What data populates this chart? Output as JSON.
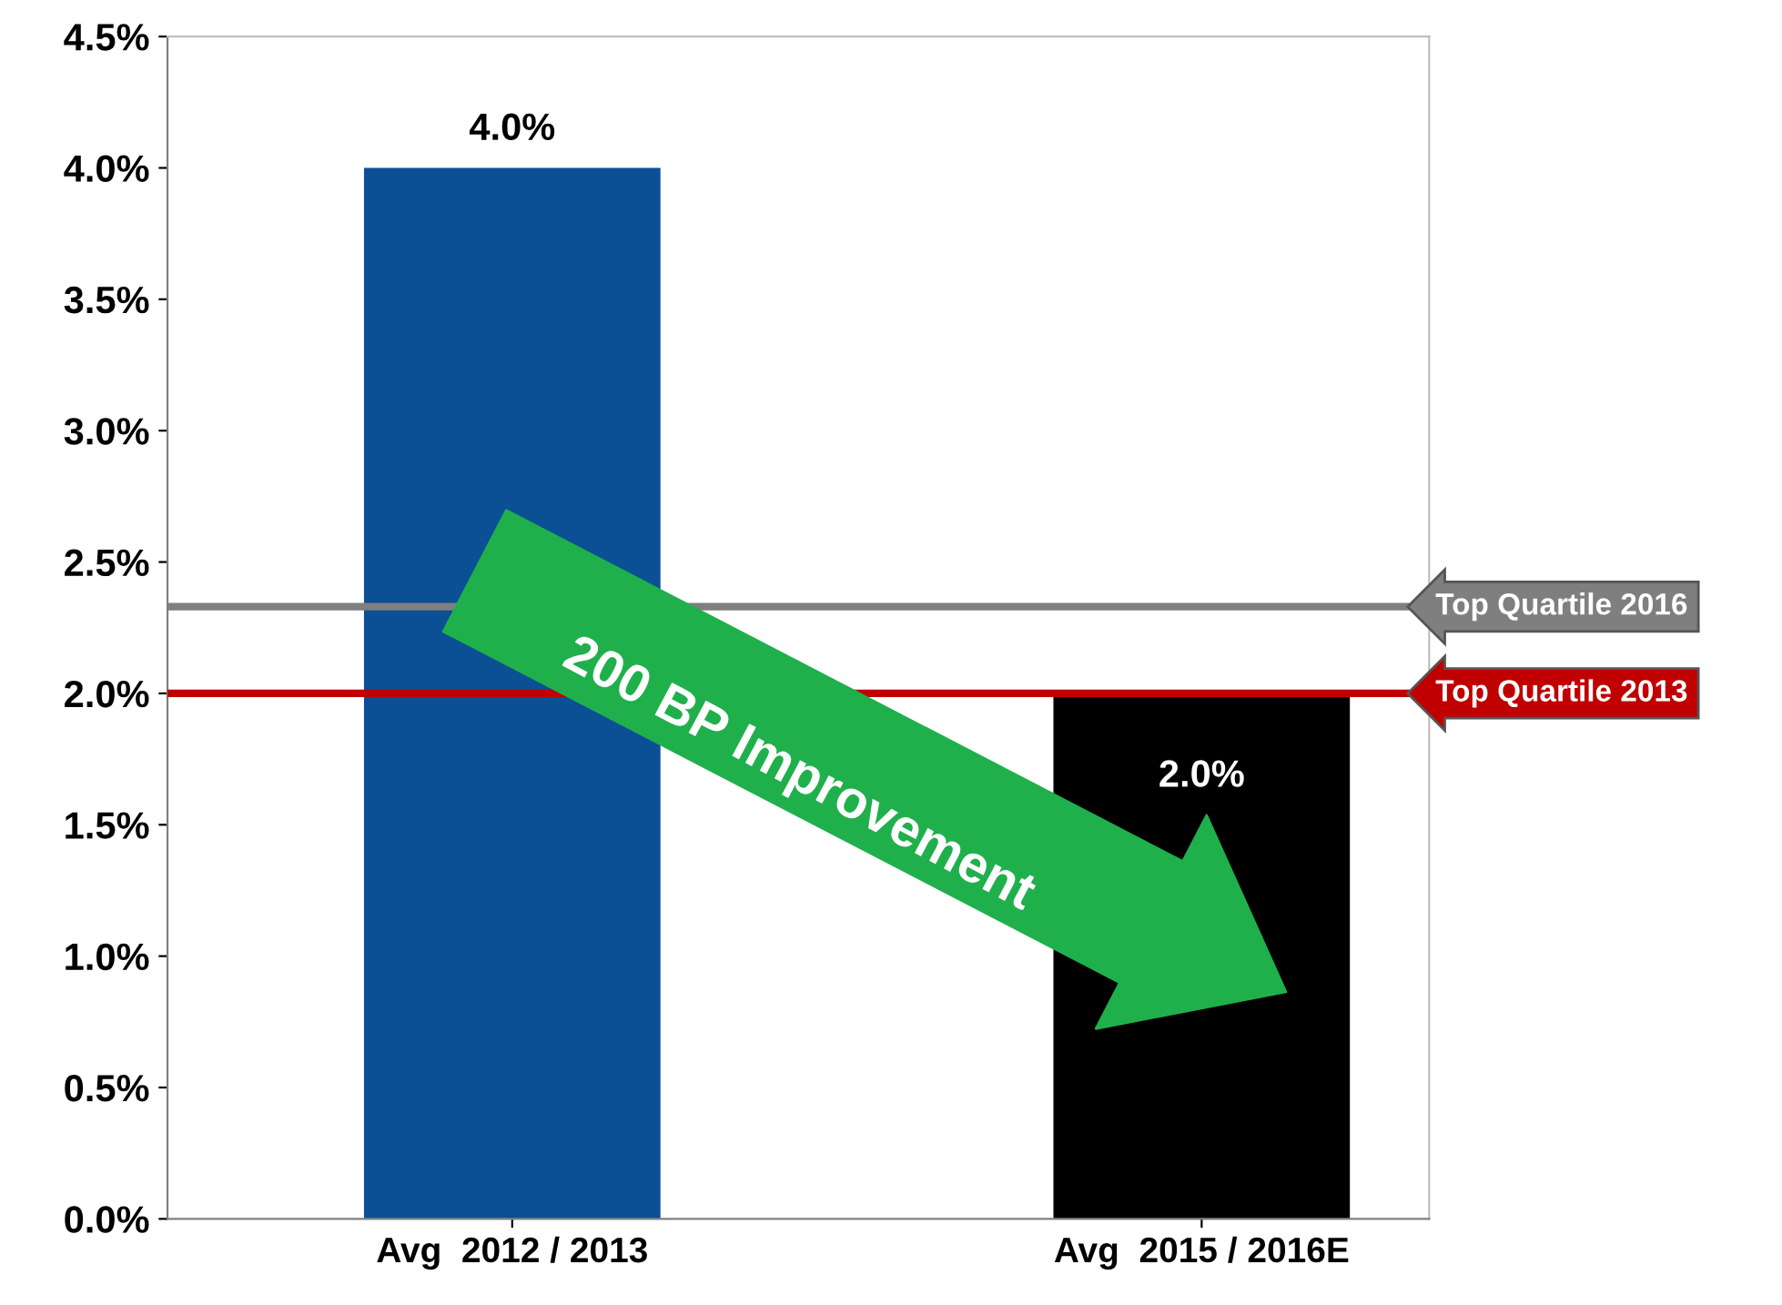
{
  "chart_data": {
    "type": "bar",
    "categories": [
      "Avg  2012 / 2013",
      "Avg  2015 / 2016E"
    ],
    "values": [
      4.0,
      2.0
    ],
    "colors": [
      "#0b4f95",
      "#000000"
    ],
    "value_labels": [
      "4.0%",
      "2.0%"
    ],
    "ylim": [
      0,
      4.5
    ],
    "yticks": [
      {
        "value": 0,
        "label": "0.0%"
      },
      {
        "value": 0.5,
        "label": "0.5%"
      },
      {
        "value": 1.0,
        "label": "1.0%"
      },
      {
        "value": 1.5,
        "label": "1.5%"
      },
      {
        "value": 2.0,
        "label": "2.0%"
      },
      {
        "value": 2.5,
        "label": "2.5%"
      },
      {
        "value": 3.0,
        "label": "3.0%"
      },
      {
        "value": 3.5,
        "label": "3.5%"
      },
      {
        "value": 4.0,
        "label": "4.0%"
      },
      {
        "value": 4.5,
        "label": "4.5%"
      }
    ],
    "ref_lines": [
      {
        "axis": "y",
        "value": 2.33,
        "label": "Top Quartile 2016",
        "color": "#7f7f7f"
      },
      {
        "axis": "y",
        "value": 2.0,
        "label": "Top Quartile 2013",
        "color": "#c00000"
      }
    ],
    "annotations": [
      "200 BP Improvement"
    ],
    "grid": false
  }
}
